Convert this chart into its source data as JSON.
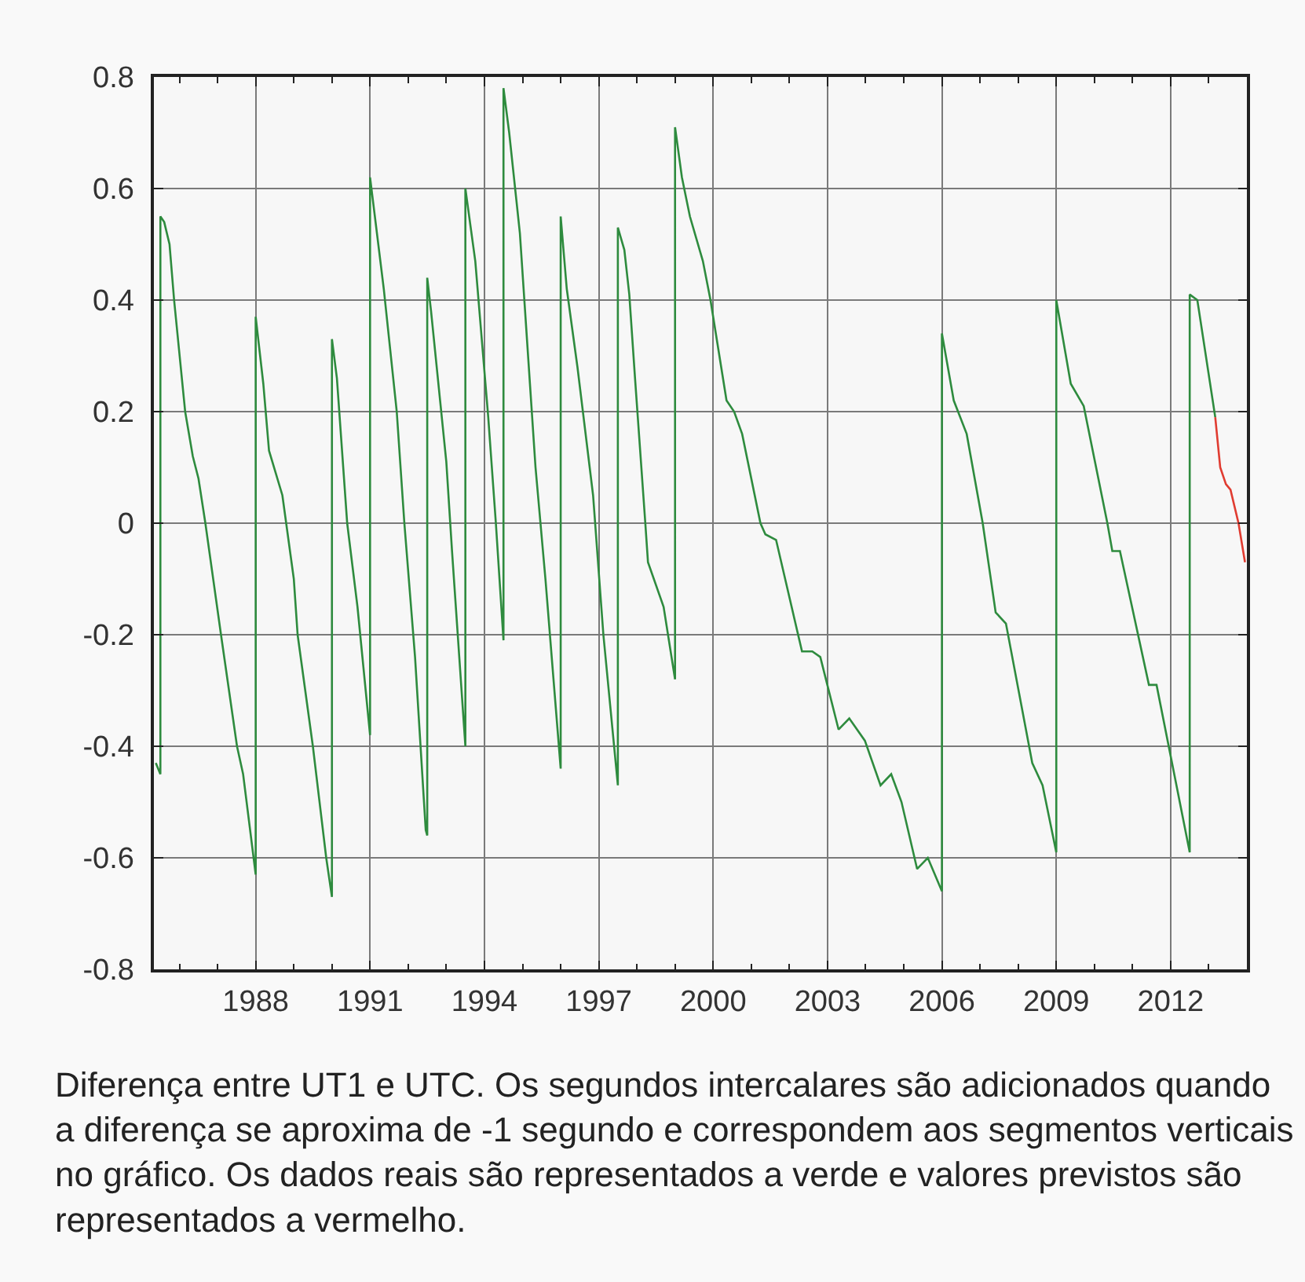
{
  "chart_data": {
    "type": "line",
    "annotations": [
      "Diferença entre UT1 e UTC. Os segundos intercalares são adicionados quando\na diferença se aproxima de -1 segundo e correspondem aos segmentos verticais\nno gráfico. Os dados reais são representados a verde e valores previstos são\nrepresentados a vermelho."
    ],
    "xlim": [
      1985.33,
      2014.0
    ],
    "xticks": [
      {
        "value": 1986,
        "label": null
      },
      {
        "value": 1987,
        "label": null
      },
      1988,
      {
        "value": 1989,
        "label": null
      },
      {
        "value": 1990,
        "label": null
      },
      1991,
      {
        "value": 1992,
        "label": null
      },
      {
        "value": 1993,
        "label": null
      },
      1994,
      {
        "value": 1995,
        "label": null
      },
      {
        "value": 1996,
        "label": null
      },
      1997,
      {
        "value": 1998,
        "label": null
      },
      {
        "value": 1999,
        "label": null
      },
      2000,
      {
        "value": 2001,
        "label": null
      },
      {
        "value": 2002,
        "label": null
      },
      2003,
      {
        "value": 2004,
        "label": null
      },
      {
        "value": 2005,
        "label": null
      },
      2006,
      {
        "value": 2007,
        "label": null
      },
      {
        "value": 2008,
        "label": null
      },
      2009,
      {
        "value": 2010,
        "label": null
      },
      {
        "value": 2011,
        "label": null
      },
      2012,
      {
        "value": 2013,
        "label": null
      }
    ],
    "ylim": [
      -0.8,
      0.8
    ],
    "yticks": [
      -0.8,
      -0.6,
      -0.4,
      -0.2,
      0,
      0.2,
      0.4,
      0.6,
      0.8
    ],
    "grid": true,
    "series": [
      {
        "color": "#2e8b3e",
        "x": [
          1985.38,
          1985.5,
          1985.5,
          1985.6,
          1985.74,
          1985.86,
          1986.15,
          1986.35,
          1986.5,
          1986.68,
          1987.09,
          1987.51,
          1987.67,
          1988.0,
          1988.0,
          1988.2,
          1988.35,
          1988.7,
          1989.0,
          1989.1,
          1989.5,
          1989.85,
          1990.0,
          1990.0,
          1990.13,
          1990.4,
          1990.67,
          1991.0,
          1991.0,
          1991.36,
          1991.7,
          1991.9,
          1992.18,
          1992.46,
          1992.5,
          1992.5,
          1992.6,
          1993.0,
          1993.15,
          1993.5,
          1993.5,
          1993.76,
          1994.1,
          1994.3,
          1994.5,
          1994.5,
          1994.65,
          1994.93,
          1995.34,
          1995.6,
          1996.0,
          1996.0,
          1996.16,
          1996.44,
          1996.85,
          1997.12,
          1997.5,
          1997.5,
          1997.67,
          1997.8,
          1997.95,
          1998.22,
          1998.29,
          1998.7,
          1999.0,
          1999.0,
          1999.18,
          1999.39,
          1999.73,
          1999.93,
          2000.35,
          2000.55,
          2000.76,
          2001.24,
          2001.37,
          2001.65,
          2002.33,
          2002.6,
          2002.81,
          2003.29,
          2003.57,
          2003.98,
          2004.39,
          2004.67,
          2004.94,
          2005.35,
          2005.63,
          2006.0,
          2006.0,
          2006.31,
          2006.65,
          2007.07,
          2007.41,
          2007.68,
          2008.37,
          2008.64,
          2009.0,
          2009.0,
          2009.38,
          2009.72,
          2010.34,
          2010.47,
          2010.67,
          2011.43,
          2011.63,
          2012.5,
          2012.5,
          2012.7,
          2013.17
        ],
        "values": [
          -0.43,
          -0.45,
          0.55,
          0.54,
          0.5,
          0.4,
          0.2,
          0.12,
          0.08,
          0.0,
          -0.2,
          -0.4,
          -0.45,
          -0.63,
          0.37,
          0.25,
          0.13,
          0.05,
          -0.1,
          -0.2,
          -0.4,
          -0.6,
          -0.67,
          0.33,
          0.26,
          0.0,
          -0.15,
          -0.38,
          0.62,
          0.42,
          0.2,
          0.0,
          -0.24,
          -0.55,
          -0.56,
          0.44,
          0.38,
          0.11,
          -0.05,
          -0.4,
          0.6,
          0.47,
          0.19,
          0.0,
          -0.21,
          0.78,
          0.7,
          0.52,
          0.1,
          -0.1,
          -0.44,
          0.55,
          0.42,
          0.28,
          0.05,
          -0.2,
          -0.47,
          0.53,
          0.49,
          0.41,
          0.26,
          0.0,
          -0.07,
          -0.15,
          -0.28,
          0.71,
          0.62,
          0.55,
          0.47,
          0.4,
          0.22,
          0.2,
          0.16,
          0.0,
          -0.02,
          -0.03,
          -0.23,
          -0.23,
          -0.24,
          -0.37,
          -0.35,
          -0.39,
          -0.47,
          -0.45,
          -0.5,
          -0.62,
          -0.6,
          -0.66,
          0.34,
          0.22,
          0.16,
          0.0,
          -0.16,
          -0.18,
          -0.43,
          -0.47,
          -0.59,
          0.4,
          0.25,
          0.21,
          0.0,
          -0.05,
          -0.05,
          -0.29,
          -0.29,
          -0.59,
          0.41,
          0.4,
          0.19
        ]
      },
      {
        "color": "#e03c31",
        "x": [
          2013.17,
          2013.3,
          2013.45,
          2013.57,
          2013.78,
          2013.95
        ],
        "values": [
          0.19,
          0.1,
          0.07,
          0.06,
          0.0,
          -0.07
        ]
      }
    ]
  }
}
